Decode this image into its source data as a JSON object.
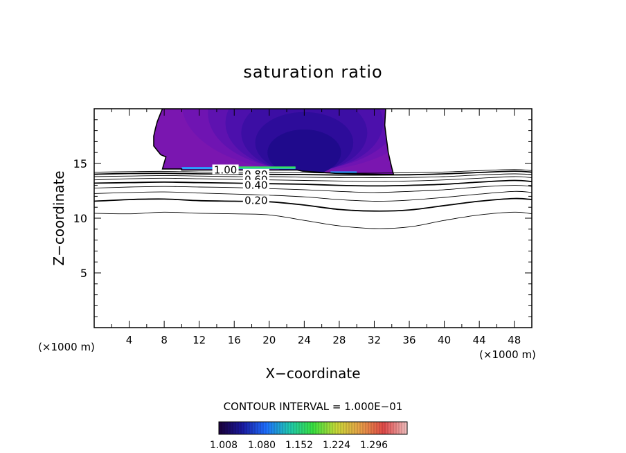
{
  "chart_data": {
    "type": "contour",
    "title": "saturation ratio",
    "xlabel": "X−coordinate",
    "ylabel": "Z−coordinate",
    "x_unit_label": "(×1000 m)",
    "z_unit_label": "(×1000 m)",
    "xlim": [
      0,
      50
    ],
    "ylim": [
      0,
      20
    ],
    "x_ticks": [
      4,
      8,
      12,
      16,
      20,
      24,
      28,
      32,
      36,
      40,
      44,
      48
    ],
    "y_ticks": [
      5,
      10,
      15
    ],
    "contour_interval_text": "CONTOUR INTERVAL =  1.000E−01",
    "colorbar_ticks": [
      "1.008",
      "1.080",
      "1.152",
      "1.224",
      "1.296"
    ],
    "colorbar_colors": [
      "#1a0038",
      "#1a1aa0",
      "#1f6fff",
      "#20c8b0",
      "#38e040",
      "#c8d838",
      "#e8a048",
      "#e04848",
      "#f0c0c0"
    ],
    "cloud_fill_color": "#7a16b0",
    "contour_labels": [
      {
        "text": "1.00",
        "x": 15.0,
        "z": 14.4
      },
      {
        "text": "0.80",
        "x": 18.5,
        "z": 14.0
      },
      {
        "text": "0.60",
        "x": 18.5,
        "z": 13.5
      },
      {
        "text": "0.40",
        "x": 18.5,
        "z": 13.0
      },
      {
        "text": "0.20",
        "x": 18.5,
        "z": 11.6
      }
    ],
    "contour_lines": [
      {
        "level": 0.1,
        "weight": "thin",
        "points": [
          [
            0,
            10.45
          ],
          [
            4,
            10.4
          ],
          [
            8,
            10.55
          ],
          [
            12,
            10.45
          ],
          [
            16,
            10.4
          ],
          [
            20,
            10.3
          ],
          [
            24,
            9.8
          ],
          [
            28,
            9.3
          ],
          [
            32,
            9.05
          ],
          [
            36,
            9.2
          ],
          [
            40,
            9.8
          ],
          [
            44,
            10.3
          ],
          [
            48,
            10.55
          ],
          [
            50,
            10.4
          ]
        ]
      },
      {
        "level": 0.2,
        "weight": "bold",
        "points": [
          [
            0,
            11.55
          ],
          [
            4,
            11.7
          ],
          [
            8,
            11.75
          ],
          [
            12,
            11.6
          ],
          [
            16,
            11.55
          ],
          [
            20,
            11.5
          ],
          [
            24,
            11.2
          ],
          [
            28,
            10.8
          ],
          [
            32,
            10.65
          ],
          [
            36,
            10.75
          ],
          [
            40,
            11.15
          ],
          [
            44,
            11.55
          ],
          [
            48,
            11.8
          ],
          [
            50,
            11.7
          ]
        ]
      },
      {
        "level": 0.3,
        "weight": "thin",
        "points": [
          [
            0,
            12.25
          ],
          [
            4,
            12.35
          ],
          [
            8,
            12.4
          ],
          [
            12,
            12.3
          ],
          [
            16,
            12.2
          ],
          [
            20,
            12.1
          ],
          [
            24,
            11.95
          ],
          [
            28,
            11.7
          ],
          [
            32,
            11.55
          ],
          [
            36,
            11.65
          ],
          [
            40,
            11.9
          ],
          [
            44,
            12.2
          ],
          [
            48,
            12.45
          ],
          [
            50,
            12.35
          ]
        ]
      },
      {
        "level": 0.4,
        "weight": "thin",
        "points": [
          [
            0,
            12.75
          ],
          [
            4,
            12.85
          ],
          [
            8,
            12.9
          ],
          [
            12,
            12.85
          ],
          [
            16,
            12.8
          ],
          [
            20,
            12.7
          ],
          [
            24,
            12.6
          ],
          [
            28,
            12.45
          ],
          [
            32,
            12.35
          ],
          [
            36,
            12.45
          ],
          [
            40,
            12.6
          ],
          [
            44,
            12.85
          ],
          [
            48,
            13.0
          ],
          [
            50,
            12.9
          ]
        ]
      },
      {
        "level": 0.5,
        "weight": "bold",
        "points": [
          [
            0,
            13.2
          ],
          [
            4,
            13.25
          ],
          [
            8,
            13.3
          ],
          [
            12,
            13.25
          ],
          [
            16,
            13.2
          ],
          [
            20,
            13.15
          ],
          [
            24,
            13.1
          ],
          [
            28,
            13.0
          ],
          [
            32,
            12.95
          ],
          [
            36,
            13.0
          ],
          [
            40,
            13.1
          ],
          [
            44,
            13.3
          ],
          [
            48,
            13.45
          ],
          [
            50,
            13.35
          ]
        ]
      },
      {
        "level": 0.6,
        "weight": "thin",
        "points": [
          [
            0,
            13.5
          ],
          [
            4,
            13.6
          ],
          [
            8,
            13.65
          ],
          [
            12,
            13.6
          ],
          [
            16,
            13.55
          ],
          [
            20,
            13.5
          ],
          [
            24,
            13.45
          ],
          [
            28,
            13.4
          ],
          [
            32,
            13.35
          ],
          [
            36,
            13.4
          ],
          [
            40,
            13.5
          ],
          [
            44,
            13.65
          ],
          [
            48,
            13.8
          ],
          [
            50,
            13.7
          ]
        ]
      },
      {
        "level": 0.7,
        "weight": "thin",
        "points": [
          [
            0,
            13.8
          ],
          [
            4,
            13.85
          ],
          [
            8,
            13.9
          ],
          [
            12,
            13.85
          ],
          [
            16,
            13.8
          ],
          [
            20,
            13.8
          ],
          [
            24,
            13.75
          ],
          [
            28,
            13.7
          ],
          [
            32,
            13.7
          ],
          [
            36,
            13.72
          ],
          [
            40,
            13.8
          ],
          [
            44,
            13.95
          ],
          [
            48,
            14.05
          ],
          [
            50,
            13.98
          ]
        ]
      },
      {
        "level": 0.8,
        "weight": "bold",
        "points": [
          [
            0,
            14.02
          ],
          [
            4,
            14.08
          ],
          [
            8,
            14.1
          ],
          [
            12,
            14.05
          ],
          [
            16,
            14.02
          ],
          [
            20,
            14.0
          ],
          [
            24,
            13.98
          ],
          [
            28,
            13.95
          ],
          [
            32,
            13.95
          ],
          [
            36,
            13.97
          ],
          [
            40,
            14.05
          ],
          [
            44,
            14.18
          ],
          [
            48,
            14.3
          ],
          [
            50,
            14.2
          ]
        ]
      },
      {
        "level": 0.9,
        "weight": "thin",
        "points": [
          [
            0,
            14.2
          ],
          [
            4,
            14.25
          ],
          [
            8,
            14.28
          ],
          [
            12,
            14.22
          ],
          [
            16,
            14.2
          ],
          [
            20,
            14.18
          ],
          [
            24,
            14.15
          ],
          [
            28,
            14.12
          ],
          [
            32,
            14.12
          ],
          [
            36,
            14.15
          ],
          [
            40,
            14.22
          ],
          [
            44,
            14.35
          ],
          [
            48,
            14.45
          ],
          [
            50,
            14.35
          ]
        ]
      }
    ],
    "cloud_region": [
      [
        7.8,
        20
      ],
      [
        7.4,
        19.2
      ],
      [
        7.2,
        18.8
      ],
      [
        7.0,
        18.2
      ],
      [
        6.8,
        17.5
      ],
      [
        6.8,
        16.6
      ],
      [
        7.2,
        16.2
      ],
      [
        7.6,
        15.8
      ],
      [
        8.2,
        15.6
      ],
      [
        7.9,
        14.8
      ],
      [
        7.8,
        14.5
      ],
      [
        10.0,
        14.5
      ],
      [
        10.0,
        14.4
      ],
      [
        23.2,
        14.4
      ],
      [
        23.8,
        14.3
      ],
      [
        27.5,
        14.1
      ],
      [
        30.0,
        14.05
      ],
      [
        33.0,
        14.0
      ],
      [
        34.2,
        14.0
      ],
      [
        34.0,
        14.6
      ],
      [
        33.8,
        15.3
      ],
      [
        33.6,
        16.0
      ],
      [
        33.4,
        17.2
      ],
      [
        33.2,
        18.5
      ],
      [
        33.3,
        20
      ]
    ],
    "cloud_inner_shades": [
      {
        "color": "#6f14b2",
        "center": [
          24,
          20.5
        ],
        "radius": [
          14,
          6.2
        ]
      },
      {
        "color": "#5e12b0",
        "center": [
          24,
          19.6
        ],
        "radius": [
          11,
          5.2
        ]
      },
      {
        "color": "#4c10ac",
        "center": [
          24,
          18.7
        ],
        "radius": [
          9,
          4.4
        ]
      },
      {
        "color": "#3c0ea4",
        "center": [
          24,
          17.8
        ],
        "radius": [
          7.2,
          3.6
        ]
      },
      {
        "color": "#2d0c9a",
        "center": [
          24,
          16.9
        ],
        "radius": [
          5.6,
          2.8
        ]
      },
      {
        "color": "#1f0a8c",
        "center": [
          24,
          16.0
        ],
        "radius": [
          4.2,
          2.1
        ]
      }
    ],
    "cloud_base_streaks": [
      {
        "x0": 10.0,
        "x1": 23.0,
        "z": 14.55,
        "color": "#2aa0ff"
      },
      {
        "x0": 13.5,
        "x1": 23.0,
        "z": 14.6,
        "color": "#33e060"
      },
      {
        "x0": 27.0,
        "x1": 30.0,
        "z": 14.15,
        "color": "#2aa0ff"
      }
    ]
  }
}
